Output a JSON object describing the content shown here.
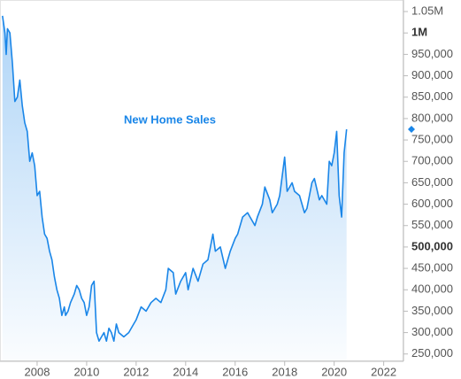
{
  "chart_data": {
    "type": "area",
    "title": "New Home Sales",
    "color": "#1a86e8",
    "xlim": [
      2006.5,
      2022.8
    ],
    "xticks": [
      2008,
      2010,
      2012,
      2014,
      2016,
      2018,
      2020,
      2022
    ],
    "ylim": [
      235000,
      1077000
    ],
    "yticks": [
      {
        "value": 1050000,
        "label": "1.05M"
      },
      {
        "value": 1000000,
        "label": "1M"
      },
      {
        "value": 950000,
        "label": "950,000"
      },
      {
        "value": 900000,
        "label": "900,000"
      },
      {
        "value": 850000,
        "label": "850,000"
      },
      {
        "value": 800000,
        "label": "800,000"
      },
      {
        "value": 750000,
        "label": "750,000"
      },
      {
        "value": 700000,
        "label": "700,000"
      },
      {
        "value": 650000,
        "label": "650,000"
      },
      {
        "value": 600000,
        "label": "600,000"
      },
      {
        "value": 550000,
        "label": "550,000"
      },
      {
        "value": 500000,
        "label": "500,000"
      },
      {
        "value": 450000,
        "label": "450,000"
      },
      {
        "value": 400000,
        "label": "400,000"
      },
      {
        "value": 350000,
        "label": "350,000"
      },
      {
        "value": 300000,
        "label": "300,000"
      },
      {
        "value": 250000,
        "label": "250,000"
      }
    ],
    "x": [
      2006.6,
      2006.7,
      2006.75,
      2006.8,
      2006.9,
      2007.0,
      2007.1,
      2007.2,
      2007.3,
      2007.4,
      2007.5,
      2007.6,
      2007.7,
      2007.8,
      2007.9,
      2008.0,
      2008.1,
      2008.2,
      2008.3,
      2008.4,
      2008.5,
      2008.6,
      2008.7,
      2008.8,
      2008.9,
      2009.0,
      2009.1,
      2009.15,
      2009.25,
      2009.35,
      2009.5,
      2009.6,
      2009.7,
      2009.8,
      2009.9,
      2010.0,
      2010.1,
      2010.2,
      2010.3,
      2010.4,
      2010.5,
      2010.6,
      2010.7,
      2010.8,
      2010.9,
      2011.0,
      2011.1,
      2011.2,
      2011.3,
      2011.5,
      2011.7,
      2011.9,
      2012.0,
      2012.2,
      2012.4,
      2012.6,
      2012.8,
      2013.0,
      2013.2,
      2013.3,
      2013.5,
      2013.6,
      2013.8,
      2014.0,
      2014.1,
      2014.3,
      2014.5,
      2014.7,
      2014.9,
      2015.1,
      2015.2,
      2015.4,
      2015.6,
      2015.8,
      2016.0,
      2016.1,
      2016.3,
      2016.5,
      2016.6,
      2016.8,
      2016.9,
      2017.1,
      2017.2,
      2017.4,
      2017.5,
      2017.7,
      2017.8,
      2018.0,
      2018.1,
      2018.3,
      2018.4,
      2018.6,
      2018.8,
      2018.9,
      2019.1,
      2019.2,
      2019.4,
      2019.5,
      2019.7,
      2019.8,
      2019.9,
      2020.0,
      2020.1,
      2020.2,
      2020.3,
      2020.4,
      2020.5
    ],
    "values": [
      1040000,
      1000000,
      950000,
      1010000,
      1000000,
      930000,
      840000,
      850000,
      890000,
      830000,
      790000,
      770000,
      700000,
      720000,
      690000,
      620000,
      630000,
      570000,
      530000,
      520000,
      490000,
      470000,
      430000,
      400000,
      380000,
      340000,
      360000,
      340000,
      350000,
      370000,
      390000,
      410000,
      400000,
      380000,
      370000,
      340000,
      360000,
      410000,
      420000,
      300000,
      280000,
      290000,
      300000,
      280000,
      310000,
      300000,
      280000,
      320000,
      300000,
      290000,
      300000,
      320000,
      330000,
      360000,
      350000,
      370000,
      380000,
      370000,
      400000,
      450000,
      440000,
      390000,
      420000,
      440000,
      400000,
      450000,
      420000,
      460000,
      470000,
      530000,
      490000,
      500000,
      450000,
      490000,
      520000,
      530000,
      570000,
      580000,
      570000,
      550000,
      570000,
      600000,
      640000,
      610000,
      580000,
      600000,
      620000,
      710000,
      630000,
      650000,
      630000,
      620000,
      580000,
      590000,
      650000,
      660000,
      610000,
      620000,
      600000,
      700000,
      690000,
      720000,
      770000,
      620000,
      570000,
      720000,
      775000
    ]
  }
}
